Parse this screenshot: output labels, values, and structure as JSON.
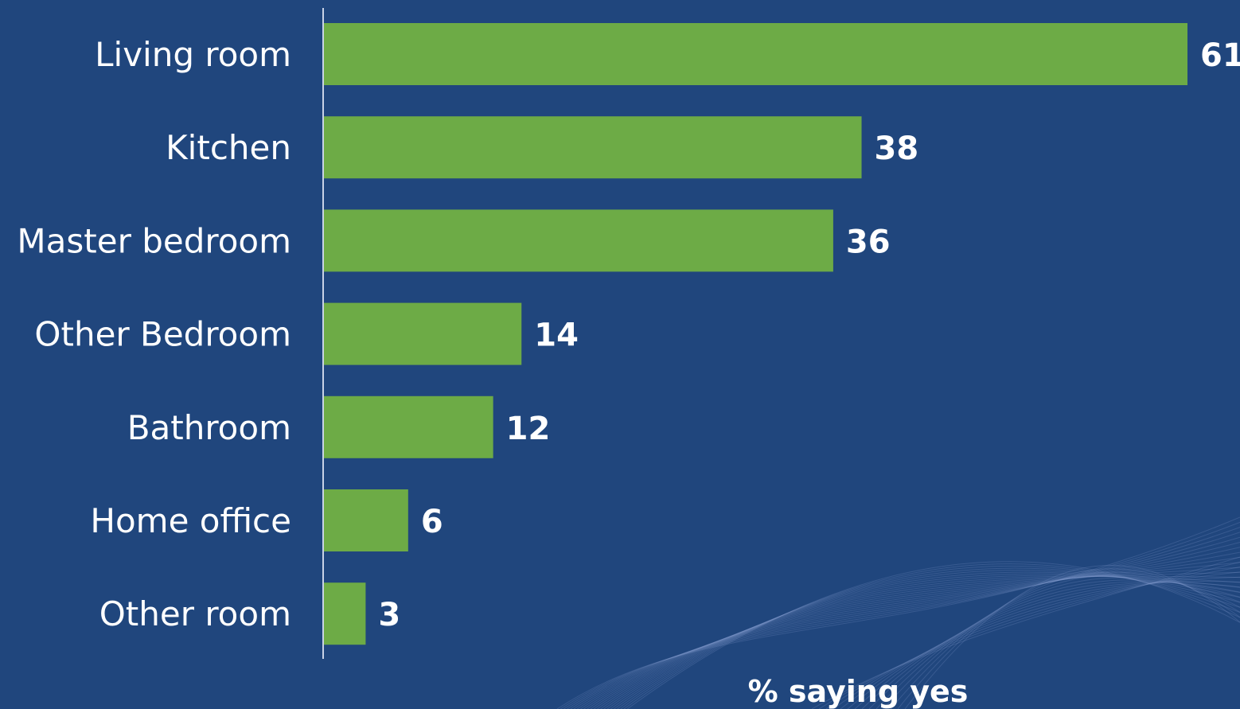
{
  "chart_data": {
    "type": "bar",
    "orientation": "horizontal",
    "categories": [
      "Living room",
      "Kitchen",
      "Master bedroom",
      "Other Bedroom",
      "Bathroom",
      "Home office",
      "Other room"
    ],
    "values": [
      61,
      38,
      36,
      14,
      12,
      6,
      3
    ],
    "title": "",
    "xlabel": "% saying yes",
    "ylabel": "",
    "xlim": [
      0,
      61
    ],
    "grid": false,
    "legend": "none",
    "data_labels": [
      "61",
      "38",
      "36",
      "14",
      "12",
      "6",
      "3"
    ]
  },
  "colors": {
    "background": "#20467d",
    "bar": "#6dab46",
    "text": "#ffffff",
    "axis": "#c8d2e6"
  }
}
